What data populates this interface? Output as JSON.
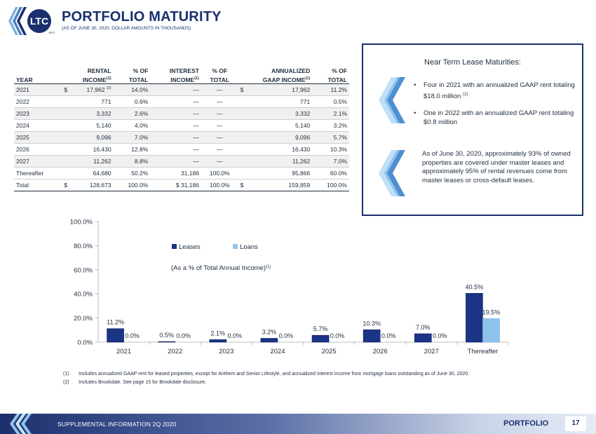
{
  "header": {
    "logo_text": "LTC",
    "logo_sub": "REIT",
    "title": "PORTFOLIO MATURITY",
    "subtitle": "(AS OF JUNE 30, 2020, DOLLAR AMOUNTS IN THOUSANDS)"
  },
  "table": {
    "headers_top": [
      "RENTAL",
      "% OF",
      "INTEREST",
      "% OF",
      "ANNUALIZED",
      "% OF"
    ],
    "headers_bottom": [
      "YEAR",
      "INCOME",
      "TOTAL",
      "INCOME",
      "TOTAL",
      "GAAP INCOME",
      "TOTAL"
    ],
    "footnote_mark": "(1)",
    "dollar": "$",
    "rows": [
      {
        "year": "2021",
        "rental": "17,962",
        "rental_note": "(2)",
        "rental_pct": "14.0%",
        "interest": "—",
        "interest_pct": "—",
        "gaap": "17,962",
        "gaap_pct": "11.2%",
        "dollar": true
      },
      {
        "year": "2022",
        "rental": "771",
        "rental_note": "",
        "rental_pct": "0.6%",
        "interest": "—",
        "interest_pct": "—",
        "gaap": "771",
        "gaap_pct": "0.5%",
        "dollar": false
      },
      {
        "year": "2023",
        "rental": "3,332",
        "rental_note": "",
        "rental_pct": "2.6%",
        "interest": "—",
        "interest_pct": "—",
        "gaap": "3,332",
        "gaap_pct": "2.1%",
        "dollar": false
      },
      {
        "year": "2024",
        "rental": "5,140",
        "rental_note": "",
        "rental_pct": "4.0%",
        "interest": "—",
        "interest_pct": "—",
        "gaap": "5,140",
        "gaap_pct": "3.2%",
        "dollar": false
      },
      {
        "year": "2025",
        "rental": "9,096",
        "rental_note": "",
        "rental_pct": "7.0%",
        "interest": "—",
        "interest_pct": "—",
        "gaap": "9,096",
        "gaap_pct": "5.7%",
        "dollar": false
      },
      {
        "year": "2026",
        "rental": "16,430",
        "rental_note": "",
        "rental_pct": "12.8%",
        "interest": "—",
        "interest_pct": "—",
        "gaap": "16,430",
        "gaap_pct": "10.3%",
        "dollar": false
      },
      {
        "year": "2027",
        "rental": "11,262",
        "rental_note": "",
        "rental_pct": "8.8%",
        "interest": "—",
        "interest_pct": "—",
        "gaap": "11,262",
        "gaap_pct": "7.0%",
        "dollar": false
      },
      {
        "year": "Thereafter",
        "rental": "64,680",
        "rental_note": "",
        "rental_pct": "50.2%",
        "interest": "31,186",
        "interest_pct": "100.0%",
        "gaap": "95,866",
        "gaap_pct": "60.0%",
        "dollar": false
      }
    ],
    "total": {
      "year": "Total",
      "rental": "128,673",
      "rental_pct": "100.0%",
      "interest": "31,186",
      "interest_pct": "100.0%",
      "gaap": "159,859",
      "gaap_pct": "100.0%"
    }
  },
  "panel": {
    "title": "Near Term Lease Maturities:",
    "bullet1": "Four in 2021 with an annualized GAAP rent totaling $18.0 million",
    "bullet1_note": "(2)",
    "bullet2": "One in 2022 with an annualized GAAP rent totaling $0.8 million",
    "note": "As of June 30, 2020, approximately 93% of owned properties are covered under master leases and approximately 95% of rental revenues come from master leases or cross-default leases."
  },
  "colors": {
    "leases": "#1b3486",
    "loans": "#8fc3ec",
    "brand_navy": "#1b2f6e"
  },
  "chart_data": {
    "type": "bar",
    "categories": [
      "2021",
      "2022",
      "2023",
      "2024",
      "2025",
      "2026",
      "2027",
      "Thereafter"
    ],
    "series": [
      {
        "name": "Leases",
        "values": [
          11.2,
          0.5,
          2.1,
          3.2,
          5.7,
          10.3,
          7.0,
          40.5
        ],
        "labels": [
          "11.2%",
          "0.5%",
          "2.1%",
          "3.2%",
          "5.7%",
          "10.3%",
          "7.0%",
          "40.5%"
        ]
      },
      {
        "name": "Loans",
        "values": [
          0.0,
          0.0,
          0.0,
          0.0,
          0.0,
          0.0,
          0.0,
          19.5
        ],
        "labels": [
          "0.0%",
          "0.0%",
          "0.0%",
          "0.0%",
          "0.0%",
          "0.0%",
          "0.0%",
          "19.5%"
        ]
      }
    ],
    "annotation": "(As a % of Total Annual Income)",
    "annotation_note": "(1)",
    "yticks": [
      "0.0%",
      "20.0%",
      "40.0%",
      "60.0%",
      "80.0%",
      "100.0%"
    ],
    "ylim": [
      0,
      100
    ],
    "legend_position": "top-left",
    "grid": false
  },
  "footnotes": [
    {
      "num": "(1)",
      "text": "Includes annualized GAAP rent for leased properties, except for Anthem and Senior Lifestyle, and annualized interest income from mortgage loans outstanding as of June 30, 2020."
    },
    {
      "num": "(2)",
      "text": "Includes Brookdale. See page 15 for Brookdale disclosure."
    }
  ],
  "footer": {
    "left": "SUPPLEMENTAL INFORMATION 2Q 2020",
    "section": "PORTFOLIO",
    "page": "17"
  }
}
